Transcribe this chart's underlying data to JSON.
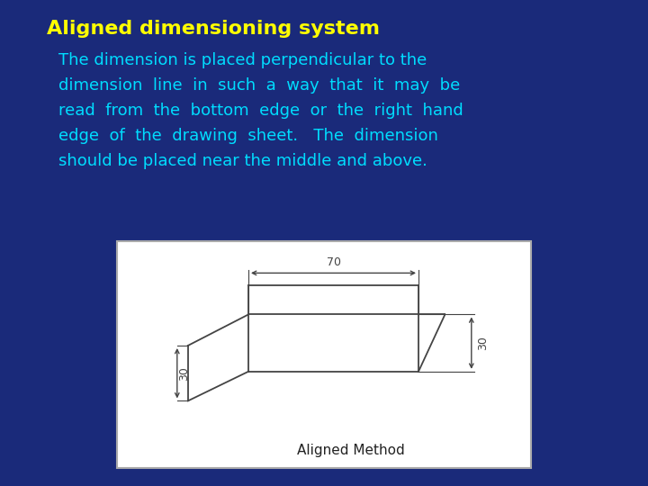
{
  "bg_color": "#1a2a7a",
  "title": "Aligned dimensioning system",
  "title_color": "#ffff00",
  "title_fontsize": 16,
  "body_lines": [
    "The dimension is placed perpendicular to the",
    "dimension  line  in  such  a  way  that  it  may  be",
    "read  from  the  bottom  edge  or  the  right  hand",
    "edge  of  the  drawing  sheet.   The  dimension",
    "should be placed near the middle and above."
  ],
  "body_color": "#00ddff",
  "body_fontsize": 13,
  "box_bg": "#ffffff",
  "box_edge": "#aaaaaa",
  "dim_label_70": "70",
  "dim_label_30_vert": "30",
  "dim_label_30_diag": "30",
  "caption": "Aligned Method",
  "caption_color": "#222222",
  "caption_fontsize": 11
}
